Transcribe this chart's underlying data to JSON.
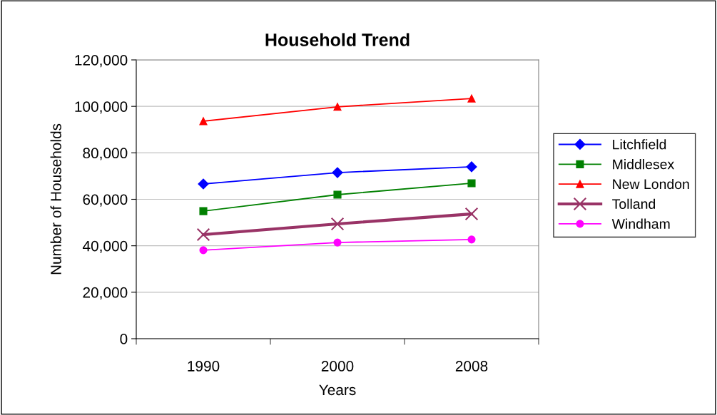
{
  "chart_data": {
    "type": "line",
    "title": "Household Trend",
    "xlabel": "Years",
    "ylabel": "Number of Households",
    "categories": [
      "1990",
      "2000",
      "2008"
    ],
    "series": [
      {
        "name": "Litchfield",
        "color": "#0000ff",
        "marker": "diamond",
        "values": [
          66600,
          71500,
          74000
        ]
      },
      {
        "name": "Middlesex",
        "color": "#008000",
        "marker": "square",
        "values": [
          54900,
          62000,
          66900
        ]
      },
      {
        "name": "New London",
        "color": "#ff0000",
        "marker": "triangle",
        "values": [
          93600,
          99800,
          103400
        ]
      },
      {
        "name": "Tolland",
        "color": "#993366",
        "marker": "cross",
        "values": [
          44800,
          49400,
          53700
        ]
      },
      {
        "name": "Windham",
        "color": "#ff00ff",
        "marker": "circle",
        "values": [
          38100,
          41400,
          42700
        ]
      }
    ],
    "ylim": [
      0,
      120000
    ],
    "yticks": [
      {
        "value": 0,
        "label": "0"
      },
      {
        "value": 20000,
        "label": "20,000"
      },
      {
        "value": 40000,
        "label": "40,000"
      },
      {
        "value": 60000,
        "label": "60,000"
      },
      {
        "value": 80000,
        "label": "80,000"
      },
      {
        "value": 100000,
        "label": "100,000"
      },
      {
        "value": 120000,
        "label": "120,000"
      }
    ],
    "grid": "y",
    "legend": "right"
  }
}
